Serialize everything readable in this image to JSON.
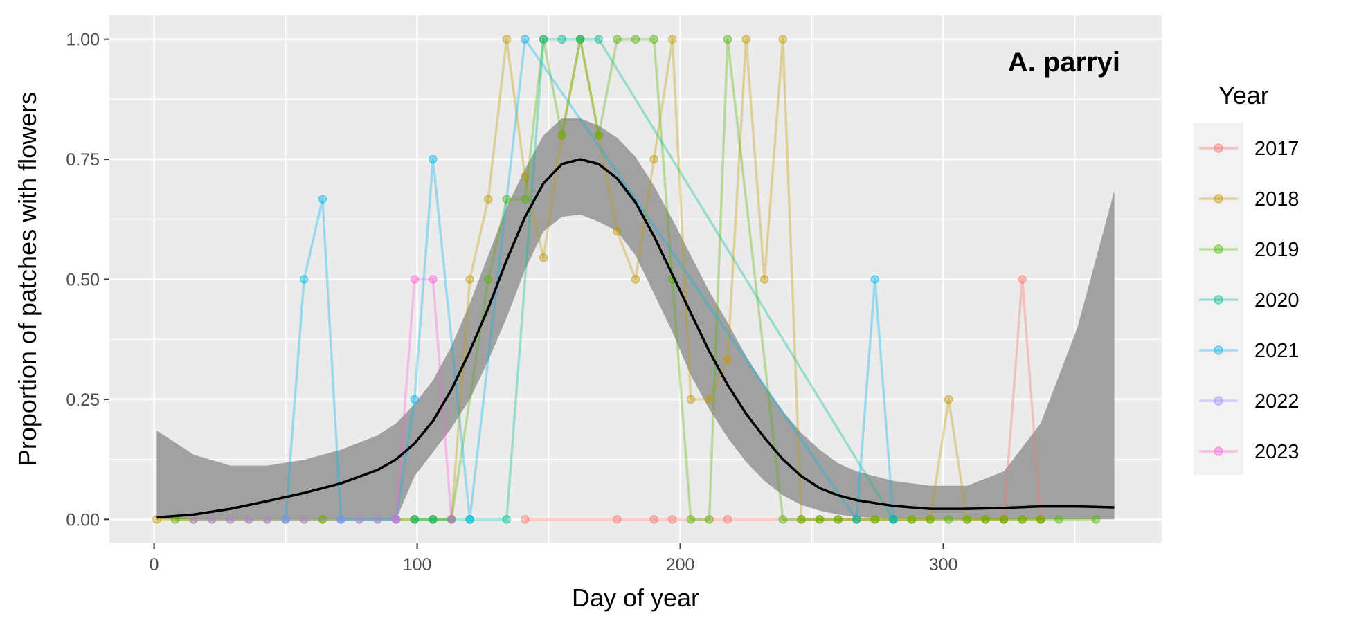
{
  "chart_data": {
    "type": "line",
    "annotation": "A. parryi",
    "xlabel": "Day of year",
    "ylabel": "Proportion of patches with flowers",
    "xlim": [
      -17,
      383
    ],
    "ylim": [
      -0.05,
      1.05
    ],
    "x_ticks": [
      0,
      100,
      200,
      300
    ],
    "x_tick_labels": [
      "0",
      "100",
      "200",
      "300"
    ],
    "y_ticks": [
      0,
      0.25,
      0.5,
      0.75,
      1.0
    ],
    "y_tick_labels": [
      "0.00",
      "0.25",
      "0.50",
      "0.75",
      "1.00"
    ],
    "grid": true,
    "legend": {
      "title": "Year",
      "position": "right"
    },
    "series": [
      {
        "name": "2017",
        "color": "#F8766D",
        "x": [
          141,
          176,
          190,
          197,
          218,
          323,
          330,
          337
        ],
        "y": [
          0,
          0,
          0,
          0,
          0,
          0,
          0.5,
          0
        ]
      },
      {
        "name": "2018",
        "color": "#C49A00",
        "x": [
          1,
          15,
          22,
          29,
          36,
          43,
          50,
          57,
          64,
          71,
          78,
          85,
          92,
          99,
          106,
          113,
          120,
          127,
          134,
          141,
          148,
          155,
          162,
          169,
          176,
          183,
          190,
          197,
          204,
          211,
          218,
          225,
          232,
          239,
          246,
          253,
          260,
          267,
          274,
          281,
          288,
          295,
          302,
          309,
          316,
          323,
          330,
          337
        ],
        "y": [
          0,
          0,
          0,
          0,
          0,
          0,
          0,
          0,
          0,
          0,
          0,
          0,
          0,
          0,
          0,
          0,
          0.5,
          0.667,
          1.0,
          0.714,
          0.545,
          0.8,
          1.0,
          0.8,
          0.6,
          0.5,
          0.75,
          1.0,
          0.25,
          0.25,
          0.333,
          1.0,
          0.5,
          1.0,
          0,
          0,
          0,
          0,
          0,
          0,
          0,
          0,
          0.25,
          0,
          0,
          0,
          0,
          0
        ]
      },
      {
        "name": "2019",
        "color": "#53B400",
        "x": [
          8,
          64,
          99,
          106,
          113,
          127,
          134,
          141,
          148,
          155,
          162,
          169,
          176,
          183,
          190,
          197,
          204,
          211,
          218,
          239,
          246,
          253,
          260,
          267,
          274,
          281,
          288,
          295,
          302,
          309,
          316,
          323,
          330,
          337,
          344,
          358
        ],
        "y": [
          0,
          0,
          0,
          0,
          0,
          0.5,
          0.667,
          0.667,
          1.0,
          0.8,
          1.0,
          0.8,
          1.0,
          1.0,
          1.0,
          0.5,
          0,
          0,
          1.0,
          0,
          0,
          0,
          0,
          0,
          0,
          0,
          0,
          0,
          0,
          0,
          0,
          0,
          0,
          0,
          0,
          0
        ]
      },
      {
        "name": "2020",
        "color": "#00C094",
        "x": [
          99,
          106,
          113,
          120,
          134,
          148,
          155,
          162,
          169,
          281
        ],
        "y": [
          0,
          0,
          0,
          0,
          0,
          1.0,
          1.0,
          1.0,
          1.0,
          0
        ]
      },
      {
        "name": "2021",
        "color": "#00B6EB",
        "x": [
          50,
          57,
          64,
          71,
          92,
          99,
          106,
          120,
          141,
          267,
          274,
          281
        ],
        "y": [
          0,
          0.5,
          0.667,
          0,
          0,
          0.25,
          0.75,
          0,
          1.0,
          0,
          0.5,
          0
        ]
      },
      {
        "name": "2022",
        "color": "#A58AFF",
        "x": [
          15,
          22,
          29,
          36,
          43,
          50,
          57,
          71,
          78,
          85,
          92
        ],
        "y": [
          0,
          0,
          0,
          0,
          0,
          0,
          0,
          0,
          0,
          0,
          0
        ]
      },
      {
        "name": "2023",
        "color": "#FB61D7",
        "x": [
          92,
          99,
          106,
          113
        ],
        "y": [
          0,
          0.5,
          0.5,
          0
        ]
      }
    ],
    "smooth": {
      "color": "#000000",
      "ribbon_color": "#999999",
      "x": [
        1,
        15,
        29,
        43,
        57,
        71,
        85,
        92,
        99,
        106,
        113,
        120,
        127,
        134,
        141,
        148,
        155,
        162,
        169,
        176,
        183,
        190,
        197,
        204,
        211,
        218,
        225,
        232,
        239,
        246,
        253,
        260,
        267,
        281,
        295,
        309,
        323,
        337,
        351,
        365
      ],
      "y": [
        0.004,
        0.01,
        0.022,
        0.038,
        0.055,
        0.075,
        0.103,
        0.125,
        0.158,
        0.205,
        0.27,
        0.35,
        0.44,
        0.54,
        0.63,
        0.7,
        0.74,
        0.75,
        0.74,
        0.71,
        0.66,
        0.59,
        0.51,
        0.43,
        0.35,
        0.28,
        0.22,
        0.17,
        0.125,
        0.09,
        0.065,
        0.05,
        0.04,
        0.028,
        0.022,
        0.022,
        0.024,
        0.027,
        0.027,
        0.025
      ],
      "lower": [
        0,
        0,
        0,
        0,
        0,
        0,
        0,
        0,
        0.09,
        0.14,
        0.19,
        0.25,
        0.33,
        0.42,
        0.52,
        0.6,
        0.63,
        0.635,
        0.62,
        0.6,
        0.55,
        0.47,
        0.39,
        0.3,
        0.23,
        0.17,
        0.12,
        0.08,
        0.05,
        0.03,
        0.018,
        0.01,
        0.005,
        0.002,
        0,
        0,
        0,
        0,
        0,
        0
      ],
      "upper": [
        0.185,
        0.135,
        0.112,
        0.112,
        0.124,
        0.145,
        0.175,
        0.2,
        0.24,
        0.29,
        0.36,
        0.45,
        0.55,
        0.65,
        0.73,
        0.8,
        0.835,
        0.835,
        0.82,
        0.795,
        0.755,
        0.695,
        0.625,
        0.55,
        0.475,
        0.41,
        0.34,
        0.28,
        0.225,
        0.18,
        0.145,
        0.117,
        0.1,
        0.08,
        0.07,
        0.07,
        0.1,
        0.2,
        0.4,
        0.685
      ]
    }
  }
}
